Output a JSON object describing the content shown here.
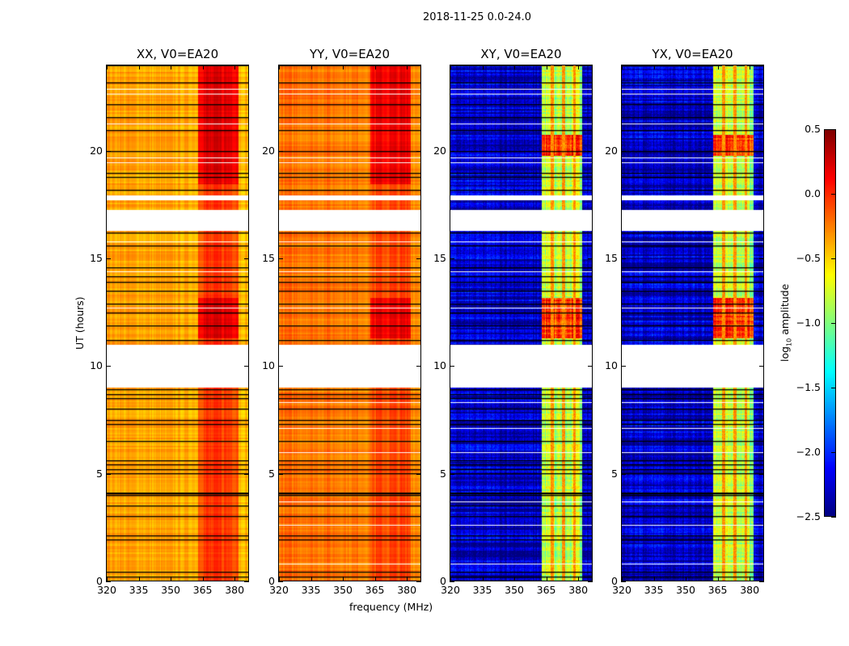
{
  "chart_data": {
    "type": "heatmap",
    "title": "2018-11-25 0.0-24.0",
    "xlabel": "frequency (MHz)",
    "ylabel": "UT (hours)",
    "xlim": [
      320,
      386.4
    ],
    "ylim": [
      0,
      24
    ],
    "xticks": [
      "320",
      "335",
      "350",
      "365",
      "380"
    ],
    "yticks": [
      "0",
      "5",
      "10",
      "15",
      "20"
    ],
    "panels": [
      {
        "title": "XX, V0=EA20",
        "base": -0.35,
        "band": -0.05
      },
      {
        "title": "YY, V0=EA20",
        "base": -0.2,
        "band": -0.1
      },
      {
        "title": "XY, V0=EA20",
        "base": -2.3,
        "band": -0.85
      },
      {
        "title": "YX, V0=EA20",
        "base": -2.3,
        "band": -0.85
      }
    ],
    "band_MHz": [
      362.5,
      381.5
    ],
    "flagged_hours": [
      [
        9.0,
        11.0
      ],
      [
        16.3,
        17.3
      ],
      [
        17.75,
        17.95
      ]
    ],
    "black_lines_hours": [
      0.2,
      0.4,
      1.9,
      2.1,
      3.0,
      3.5,
      4.0,
      4.05,
      4.1,
      5.0,
      5.2,
      5.4,
      5.6,
      6.5,
      7.3,
      7.5,
      8.0,
      8.5,
      8.7,
      8.9,
      11.2,
      11.9,
      12.5,
      12.9,
      13.5,
      13.9,
      14.2,
      14.6,
      15.6,
      16.2,
      18.2,
      18.8,
      19.0,
      20.0,
      21.0,
      21.6,
      22.2,
      23.2
    ],
    "colorbar": {
      "label": "log10 amplitude",
      "label_main": "log",
      "label_sub": "10",
      "label_rest": " amplitude",
      "range": [
        -2.5,
        0.5
      ],
      "ticks": [
        "0.5",
        "0.0",
        "−0.5",
        "−1.0",
        "−1.5",
        "−2.0",
        "−2.5"
      ],
      "tick_values": [
        0.5,
        0.0,
        -0.5,
        -1.0,
        -1.5,
        -2.0,
        -2.5
      ]
    }
  }
}
